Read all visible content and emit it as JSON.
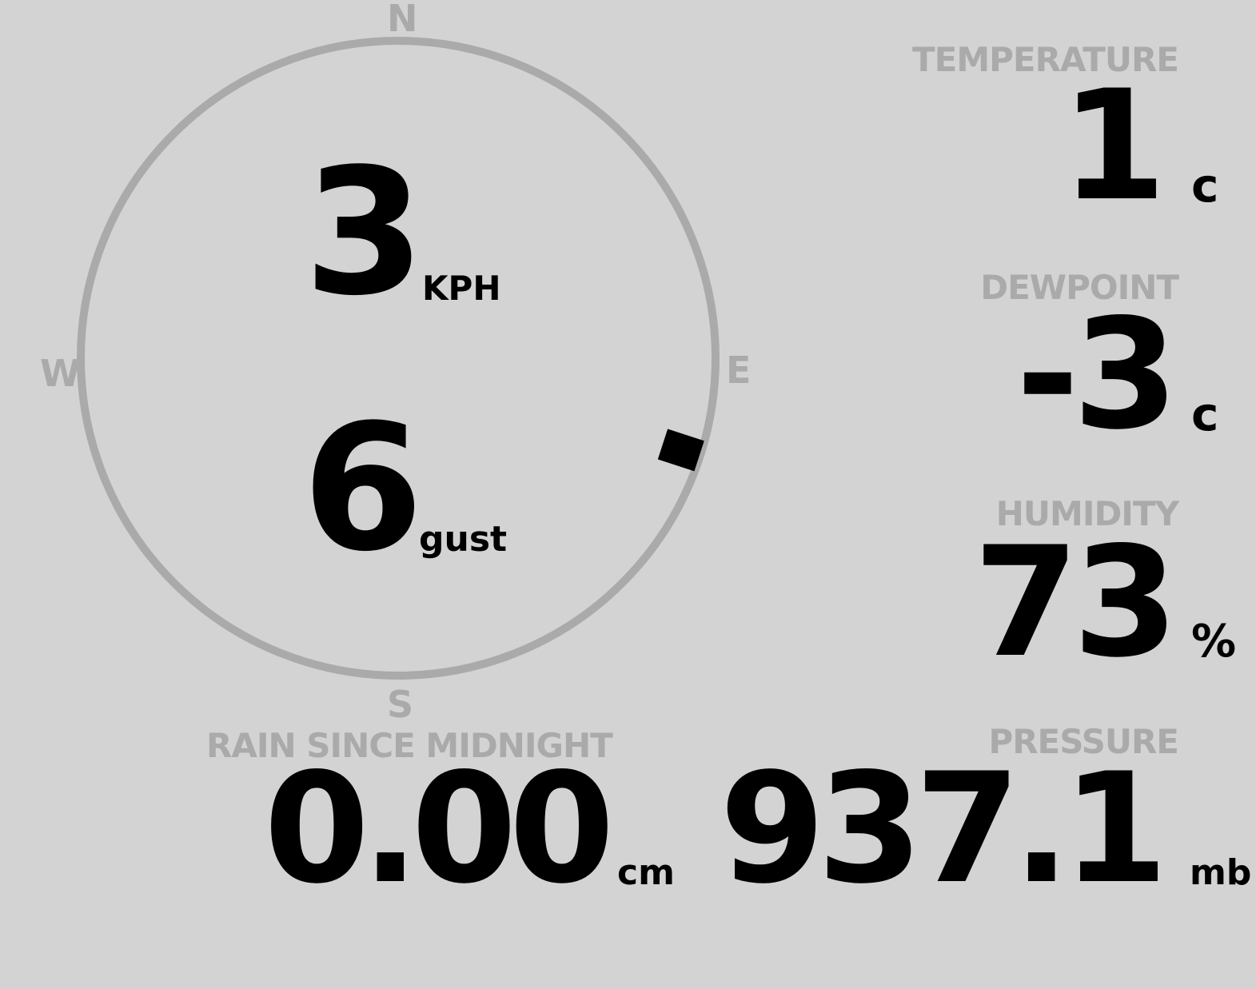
{
  "wind": {
    "speed": "3",
    "speed_unit": "KPH",
    "gust": "6",
    "gust_label": "gust",
    "direction_deg": 108,
    "cardinals": {
      "n": "N",
      "e": "E",
      "s": "S",
      "w": "W"
    }
  },
  "temperature": {
    "label": "TEMPERATURE",
    "value": "1",
    "unit": "c"
  },
  "dewpoint": {
    "label": "DEWPOINT",
    "value": "-3",
    "unit": "c"
  },
  "humidity": {
    "label": "HUMIDITY",
    "value": "73",
    "unit": "%"
  },
  "rain": {
    "label": "RAIN SINCE MIDNIGHT",
    "value": "0.00",
    "unit": "cm"
  },
  "pressure": {
    "label": "PRESSURE",
    "value": "937.1",
    "unit": "mb"
  },
  "colors": {
    "background": "#d3d3d3",
    "ring": "#aaaaaa",
    "label": "#aaaaaa",
    "value": "#000000"
  }
}
